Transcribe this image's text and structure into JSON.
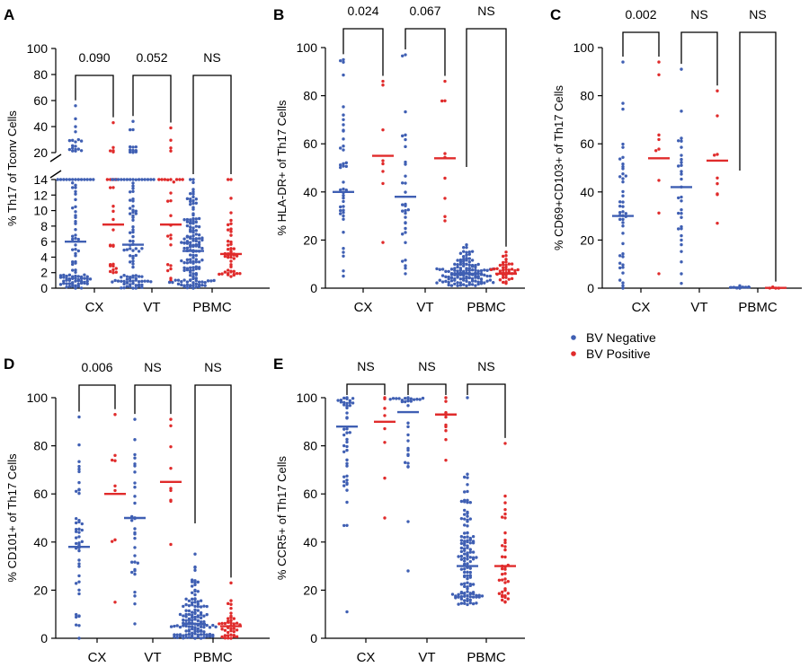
{
  "colors": {
    "bv_negative": "#3f5fb3",
    "bv_positive": "#e02b2b"
  },
  "legend": {
    "items": [
      {
        "label": "BV Negative",
        "color": "#3f5fb3"
      },
      {
        "label": "BV Positive",
        "color": "#e02b2b"
      }
    ]
  },
  "chart_data": [
    {
      "panel": "A",
      "type": "scatter",
      "ylabel": "% Th17 of Tconv Cells",
      "broken_axis": true,
      "lower_ylim": [
        0,
        14
      ],
      "lower_ticks": [
        0,
        2,
        4,
        6,
        8,
        10,
        12,
        14
      ],
      "upper_ylim": [
        20,
        100
      ],
      "upper_ticks": [
        20,
        40,
        60,
        80,
        100
      ],
      "categories": [
        "CX",
        "VT",
        "PBMC"
      ],
      "p_values": [
        "0.090",
        "0.052",
        "NS"
      ],
      "series": [
        {
          "name": "BV Negative",
          "n": [
            110,
            110,
            150
          ],
          "medians": [
            6.0,
            5.6,
            4.8
          ],
          "ranges": [
            [
              0,
              56
            ],
            [
              0,
              44
            ],
            [
              0,
              16
            ]
          ]
        },
        {
          "name": "BV Positive",
          "n": [
            28,
            28,
            48
          ],
          "medians": [
            8.2,
            8.2,
            4.4
          ],
          "ranges": [
            [
              2,
              43
            ],
            [
              1,
              39
            ],
            [
              1.5,
              18
            ]
          ]
        }
      ]
    },
    {
      "panel": "B",
      "type": "scatter",
      "ylabel": "% HLA-DR+ of Th17 Cells",
      "ylim": [
        0,
        100
      ],
      "ticks": [
        0,
        20,
        40,
        60,
        80,
        100
      ],
      "categories": [
        "CX",
        "VT",
        "PBMC"
      ],
      "p_values": [
        "0.024",
        "0.067",
        "NS"
      ],
      "series": [
        {
          "name": "BV Negative",
          "n": [
            42,
            32,
            130
          ],
          "medians": [
            40,
            38,
            6
          ],
          "ranges": [
            [
              5,
              95
            ],
            [
              6,
              97
            ],
            [
              1,
              18
            ]
          ]
        },
        {
          "name": "BV Positive",
          "n": [
            8,
            9,
            40
          ],
          "medians": [
            55,
            54,
            6
          ],
          "ranges": [
            [
              19,
              86
            ],
            [
              28,
              86
            ],
            [
              2,
              15
            ]
          ]
        }
      ]
    },
    {
      "panel": "C",
      "type": "scatter",
      "ylabel": "% CD69+CD103+ of Th17 Cells",
      "ylim": [
        0,
        100
      ],
      "ticks": [
        0,
        20,
        40,
        60,
        80,
        100
      ],
      "categories": [
        "CX",
        "VT",
        "PBMC"
      ],
      "p_values": [
        "0.002",
        "NS",
        "NS"
      ],
      "series": [
        {
          "name": "BV Negative",
          "n": [
            45,
            32,
            8
          ],
          "medians": [
            30,
            42,
            0.3
          ],
          "ranges": [
            [
              0,
              94
            ],
            [
              2,
              91
            ],
            [
              0,
              1
            ]
          ]
        },
        {
          "name": "BV Positive",
          "n": [
            9,
            9,
            4
          ],
          "medians": [
            54,
            53,
            0.1
          ],
          "ranges": [
            [
              6,
              94
            ],
            [
              27,
              82
            ],
            [
              0,
              0.5
            ]
          ]
        }
      ]
    },
    {
      "panel": "D",
      "type": "scatter",
      "ylabel": "% CD101+ of Th17 Cells",
      "ylim": [
        0,
        100
      ],
      "ticks": [
        0,
        20,
        40,
        60,
        80,
        100
      ],
      "categories": [
        "CX",
        "VT",
        "PBMC"
      ],
      "p_values": [
        "0.006",
        "NS",
        "NS"
      ],
      "series": [
        {
          "name": "BV Negative",
          "n": [
            45,
            32,
            130
          ],
          "medians": [
            38,
            50,
            6
          ],
          "ranges": [
            [
              0,
              92
            ],
            [
              6,
              91
            ],
            [
              0,
              35
            ]
          ]
        },
        {
          "name": "BV Positive",
          "n": [
            9,
            9,
            40
          ],
          "medians": [
            60,
            65,
            5
          ],
          "ranges": [
            [
              15,
              93
            ],
            [
              39,
              91
            ],
            [
              0,
              23
            ]
          ]
        }
      ]
    },
    {
      "panel": "E",
      "type": "scatter",
      "ylabel": "% CCR5+ of Th17 Cells",
      "ylim": [
        0,
        100
      ],
      "ticks": [
        0,
        20,
        40,
        60,
        80,
        100
      ],
      "categories": [
        "CX",
        "VT",
        "PBMC"
      ],
      "p_values": [
        "NS",
        "NS",
        "NS"
      ],
      "series": [
        {
          "name": "BV Negative",
          "n": [
            45,
            32,
            130
          ],
          "medians": [
            88,
            94,
            30
          ],
          "ranges": [
            [
              11,
              100
            ],
            [
              28,
              100
            ],
            [
              14,
              100
            ]
          ]
        },
        {
          "name": "BV Positive",
          "n": [
            8,
            9,
            40
          ],
          "medians": [
            90,
            93,
            30
          ],
          "ranges": [
            [
              50,
              100
            ],
            [
              74,
              100
            ],
            [
              15,
              81
            ]
          ]
        }
      ]
    }
  ]
}
